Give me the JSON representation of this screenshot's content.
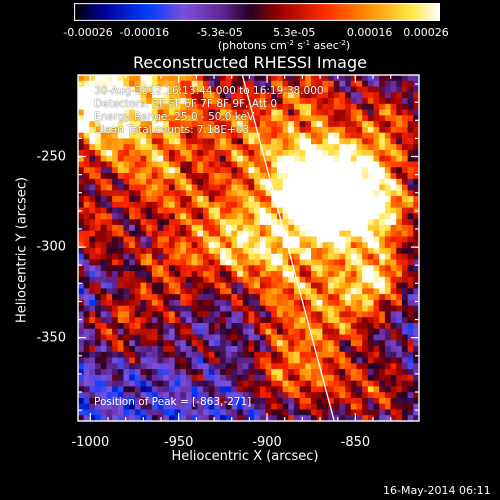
{
  "colorbar": {
    "ticks": [
      "-0.00026",
      "-0.00016",
      "-5.3e-05",
      "5.3e-05",
      "0.00016",
      "0.00026"
    ],
    "tick_values": [
      -0.00026,
      -0.00016,
      -5.3e-05,
      5.3e-05,
      0.00016,
      0.00026
    ],
    "units_label": "(photons cm",
    "units_exp1": "-2",
    "units_mid": " s",
    "units_exp2": "-1",
    "units_end": " asec",
    "units_exp3": "-2",
    "units_close": ")"
  },
  "title": "Reconstructed RHESSI Image",
  "info": {
    "time_range": "30-Aug-2012 16:13:44.000 to 16:19:38.000",
    "detectors": "Detectors: 3F 5F 6F 7F 8F 9F, Att 0",
    "energy_range": "Energy Range: 25.0 - 50.0 keV",
    "method_counts": "Clean    Total counts: 7.18E+03"
  },
  "peak_label": "Position of Peak = [-863,-271]",
  "x_axis": {
    "title": "Heliocentric X (arcsec)",
    "ticks": [
      "-1000",
      "-950",
      "-900",
      "-850"
    ],
    "tick_values": [
      -1000,
      -950,
      -900,
      -850
    ],
    "range": [
      -1007,
      -814
    ]
  },
  "y_axis": {
    "title": "Heliocentric Y (arcsec)",
    "ticks": [
      "-250",
      "-300",
      "-350"
    ],
    "tick_values": [
      -250,
      -300,
      -350
    ],
    "range": [
      -396,
      -205
    ]
  },
  "limb_colour": "#ffffff",
  "timestamp": "16-May-2014 06:11"
}
